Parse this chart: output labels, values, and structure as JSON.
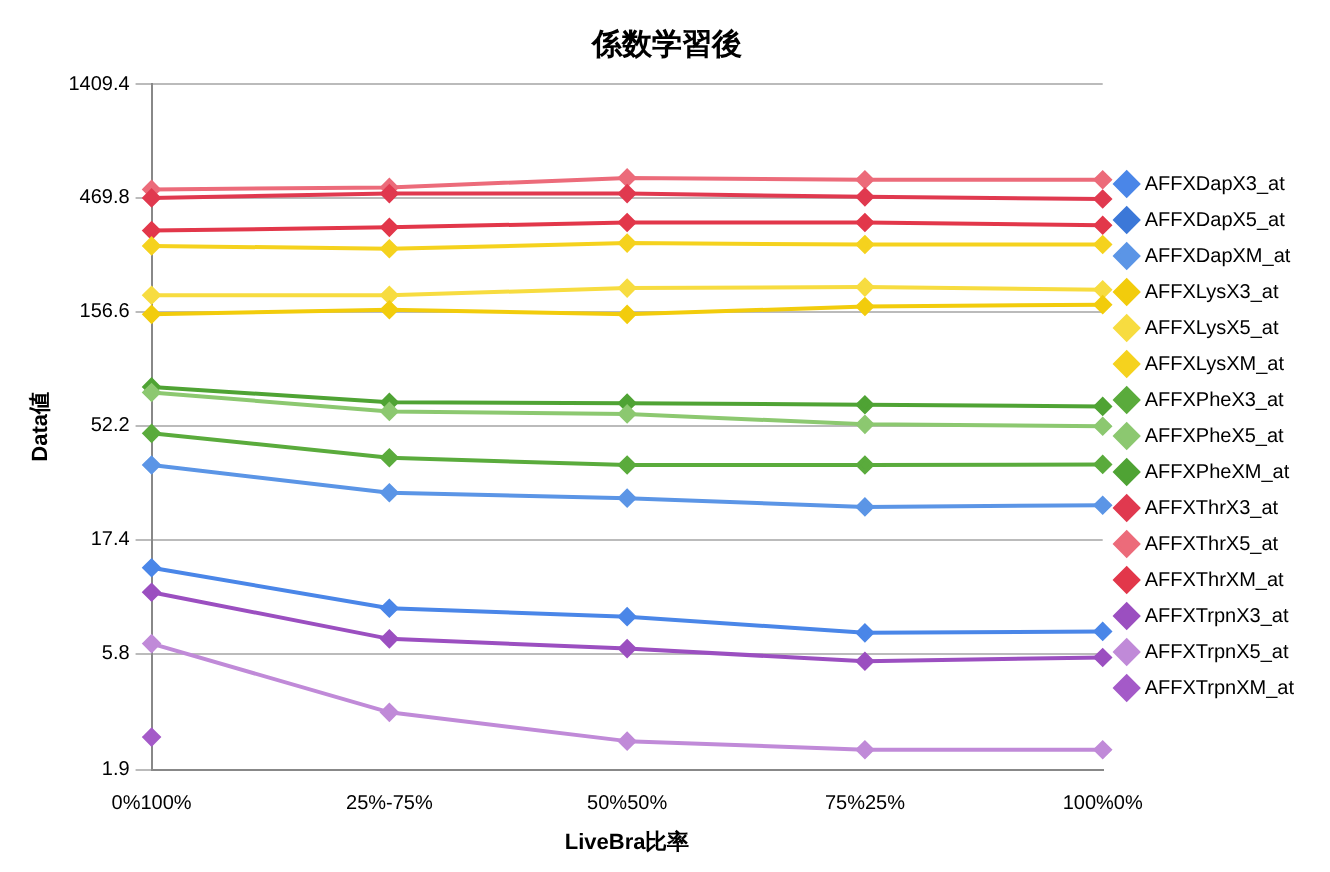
{
  "chart_data": {
    "type": "line",
    "title": "係数学習後",
    "xlabel": "LiveBra比率",
    "ylabel": "Data値",
    "categories": [
      "0%100%",
      "25%-75%",
      "50%50%",
      "75%25%",
      "100%0%"
    ],
    "log": true,
    "ylim": [
      1.9,
      1409.4
    ],
    "yticks": [
      1.9,
      5.8,
      17.4,
      52.2,
      156.6,
      469.8,
      1409.4
    ],
    "grid": "y",
    "legend": "right",
    "marker": "diamond",
    "series": [
      {
        "name": "AFFXDapX3_at",
        "color": "#4a86e8",
        "values": [
          13.3,
          9.0,
          8.3,
          7.1,
          7.2
        ]
      },
      {
        "name": "AFFXDapX5_at",
        "color": "#3c78d8",
        "values": [
          null,
          null,
          null,
          null,
          null
        ]
      },
      {
        "name": "AFFXDapXM_at",
        "color": "#5b95e6",
        "values": [
          35.8,
          27.4,
          26,
          23.9,
          24.3
        ]
      },
      {
        "name": "AFFXLysX3_at",
        "color": "#f2cc0c",
        "values": [
          153,
          160,
          153,
          165,
          168
        ]
      },
      {
        "name": "AFFXLysX5_at",
        "color": "#f7dc40",
        "values": [
          184,
          184,
          197,
          199,
          194
        ]
      },
      {
        "name": "AFFXLysXM_at",
        "color": "#f5d21e",
        "values": [
          296,
          288,
          304,
          300,
          300
        ]
      },
      {
        "name": "AFFXPheX3_at",
        "color": "#5aab3c",
        "values": [
          48.6,
          38.4,
          35.8,
          35.8,
          36
        ]
      },
      {
        "name": "AFFXPheX5_at",
        "color": "#8cc870",
        "values": [
          72,
          60,
          58.6,
          53,
          52
        ]
      },
      {
        "name": "AFFXPheXM_at",
        "color": "#4fa334",
        "values": [
          76,
          65.5,
          65,
          64,
          63
        ]
      },
      {
        "name": "AFFXThrX3_at",
        "color": "#e0394f",
        "values": [
          470,
          490,
          490,
          475,
          465
        ]
      },
      {
        "name": "AFFXThrX5_at",
        "color": "#ec6b7a",
        "values": [
          510,
          520,
          570,
          560,
          560
        ]
      },
      {
        "name": "AFFXThrXM_at",
        "color": "#e2374a",
        "values": [
          343,
          354,
          371,
          371,
          361
        ]
      },
      {
        "name": "AFFXTrpnX3_at",
        "color": "#9b4fc0",
        "values": [
          10.5,
          6.7,
          6.1,
          5.4,
          5.6
        ]
      },
      {
        "name": "AFFXTrpnX5_at",
        "color": "#c08ad8",
        "values": [
          6.4,
          3.3,
          2.5,
          2.3,
          2.3
        ]
      },
      {
        "name": "AFFXTrpnXM_at",
        "color": "#a45ac8",
        "values": [
          2.6,
          null,
          null,
          null,
          null
        ]
      }
    ]
  }
}
